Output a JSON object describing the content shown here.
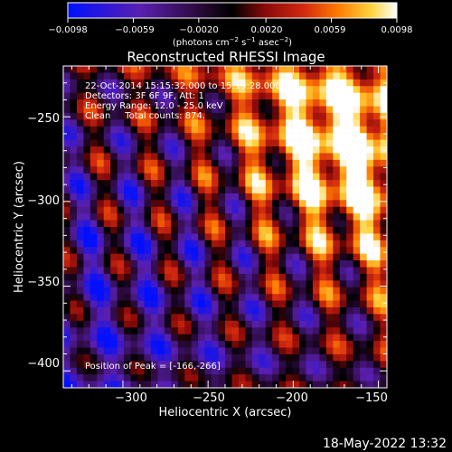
{
  "chart_data": {
    "type": "heatmap",
    "title": "Reconstructed RHESSI Image",
    "xlabel": "Heliocentric X (arcsec)",
    "ylabel": "Heliocentric Y (arcsec)",
    "xlim": [
      -335,
      -145
    ],
    "ylim": [
      -410,
      -220
    ],
    "x_ticks": [
      -300,
      -250,
      -200,
      -150
    ],
    "y_ticks": [
      -250,
      -300,
      -350,
      -400
    ],
    "x_tick_labels": [
      "−300",
      "−250",
      "−200",
      "−150"
    ],
    "y_tick_labels": [
      "−250",
      "−300",
      "−350",
      "−400"
    ],
    "annotations": [
      "22-Oct-2014 15:15:32.000 to 15:19:28.000",
      "Detectors: 3F 6F 9F, Att: 1",
      "Energy Range: 12.0 - 25.0 keV",
      "Clean     Total counts: 874."
    ],
    "peak_label": "Position of Peak = [-166,-266]",
    "peak": [
      -166,
      -266
    ],
    "colorbar": {
      "range": [
        -0.0098,
        0.0098
      ],
      "ticks": [
        -0.0098,
        -0.0059,
        -0.002,
        0.002,
        0.0059,
        0.0098
      ],
      "tick_labels": [
        "−0.0098",
        "−0.0059",
        "−0.0020",
        "0.0020",
        "0.0059",
        "0.0098"
      ],
      "unit_label": "(photons cm",
      "unit_exp1": "−2",
      "unit_mid": " s",
      "unit_exp2": "−1",
      "unit_mid2": " asec",
      "unit_exp3": "−2",
      "unit_end": ")",
      "colors": [
        "#0010ff",
        "#5a1fb0",
        "#2a0a3a",
        "#000000",
        "#8a0a0a",
        "#d42a10",
        "#ff7a00",
        "#ffd23a",
        "#ffffff"
      ]
    },
    "grid": false
  },
  "footer": {
    "timestamp": "18-May-2022 13:32"
  }
}
